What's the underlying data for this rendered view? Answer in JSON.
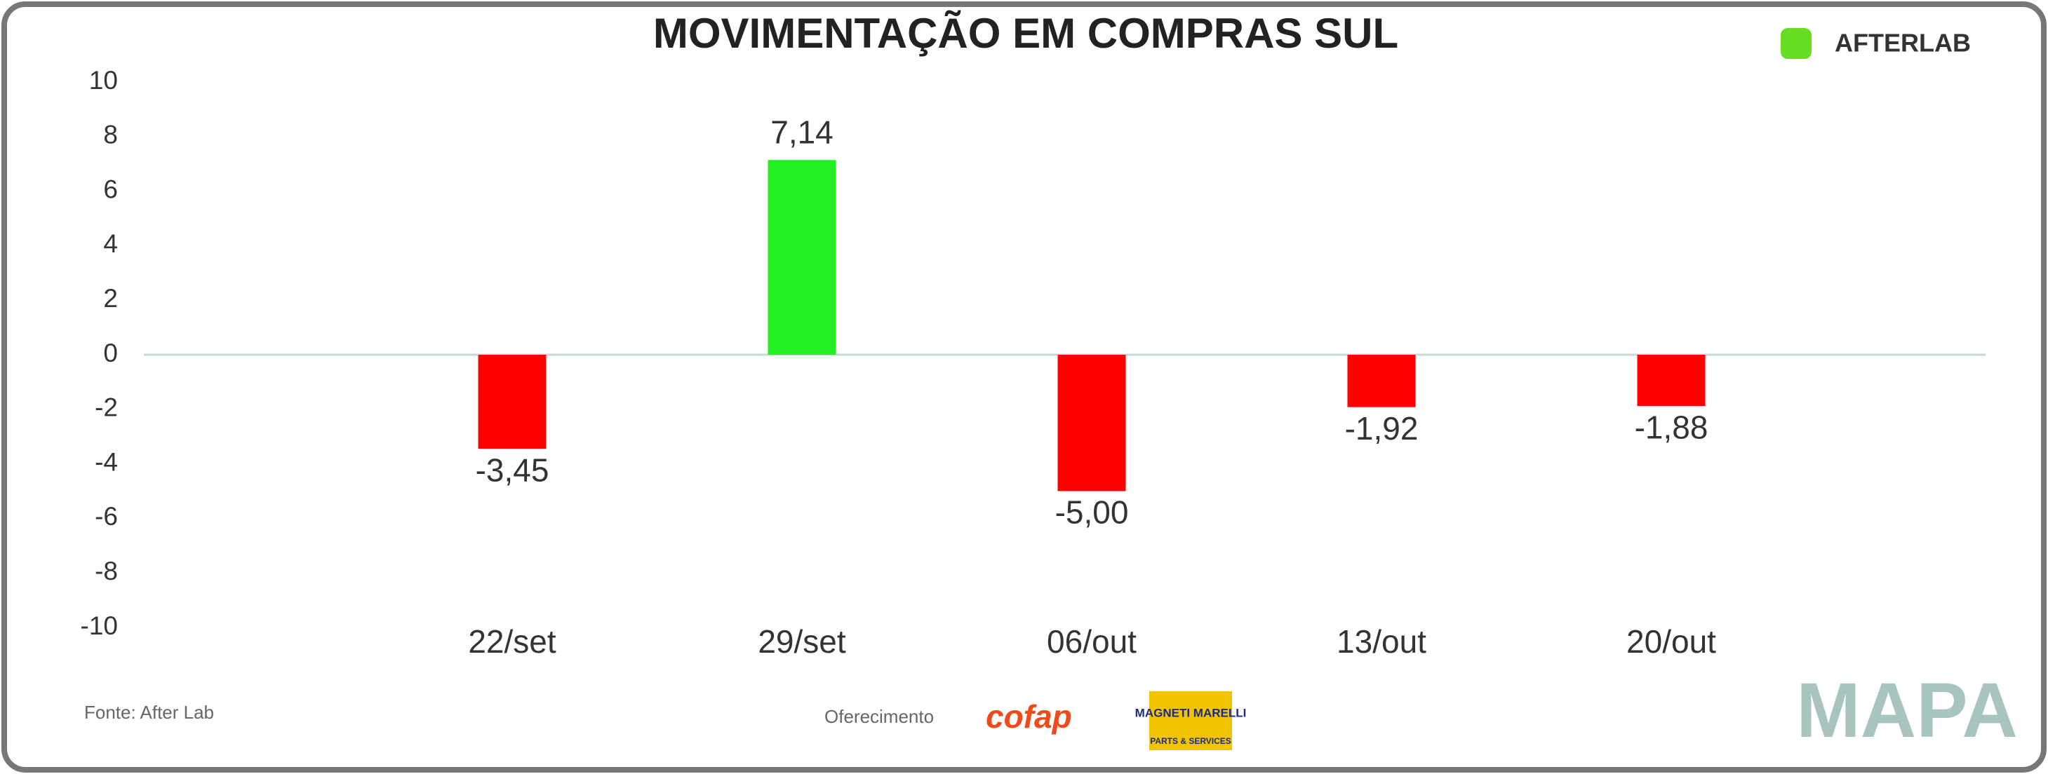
{
  "chart_data": {
    "type": "bar",
    "title": "MOVIMENTAÇÃO EM COMPRAS SUL",
    "categories": [
      "22/set",
      "29/set",
      "06/out",
      "13/out",
      "20/out"
    ],
    "values": [
      -3.45,
      7.14,
      -5.0,
      -1.92,
      -1.88
    ],
    "value_labels": [
      "-3,45",
      "7,14",
      "-5,00",
      "-1,92",
      "-1,88"
    ],
    "colors": [
      "#ff0000",
      "#22ee22",
      "#ff0000",
      "#ff0000",
      "#ff0000"
    ],
    "ylim": [
      -10,
      10
    ],
    "yticks": [
      -10,
      -8,
      -6,
      -4,
      -2,
      0,
      2,
      4,
      6,
      8,
      10
    ],
    "grid": false
  },
  "footer": {
    "source": "Fonte: After Lab",
    "sponsor": "Oferecimento",
    "sponsor1": "cofap",
    "sponsor2": "MAGNETI MARELLI",
    "sponsor2_sub": "PARTS & SERVICES",
    "brand": "AFTERLAB",
    "mapa": "MAPA"
  }
}
